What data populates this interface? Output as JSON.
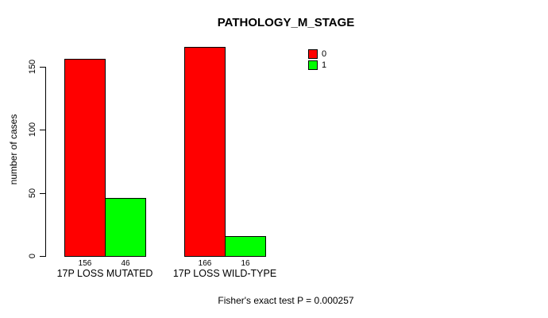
{
  "chart_data": {
    "type": "bar",
    "title": "PATHOLOGY_M_STAGE",
    "categories": [
      "17P LOSS MUTATED",
      "17P LOSS WILD-TYPE"
    ],
    "series": [
      {
        "name": "0",
        "color": "#ff0000",
        "values": [
          156,
          166
        ]
      },
      {
        "name": "1",
        "color": "#00ff00",
        "values": [
          46,
          16
        ]
      }
    ],
    "bar_value_labels": [
      [
        "156",
        "46"
      ],
      [
        "166",
        "16"
      ]
    ],
    "xlabel": "",
    "ylabel": "number of cases",
    "yticks": [
      0,
      50,
      100,
      150
    ],
    "ylim": [
      0,
      166
    ],
    "grid": false,
    "legend_position": "top-right",
    "annotation": "Fisher's exact test P = 0.000257",
    "colors": {
      "series0": "#ff0000",
      "series1": "#00ff00",
      "axis": "#000000",
      "text": "#000000",
      "background": "#ffffff"
    }
  }
}
